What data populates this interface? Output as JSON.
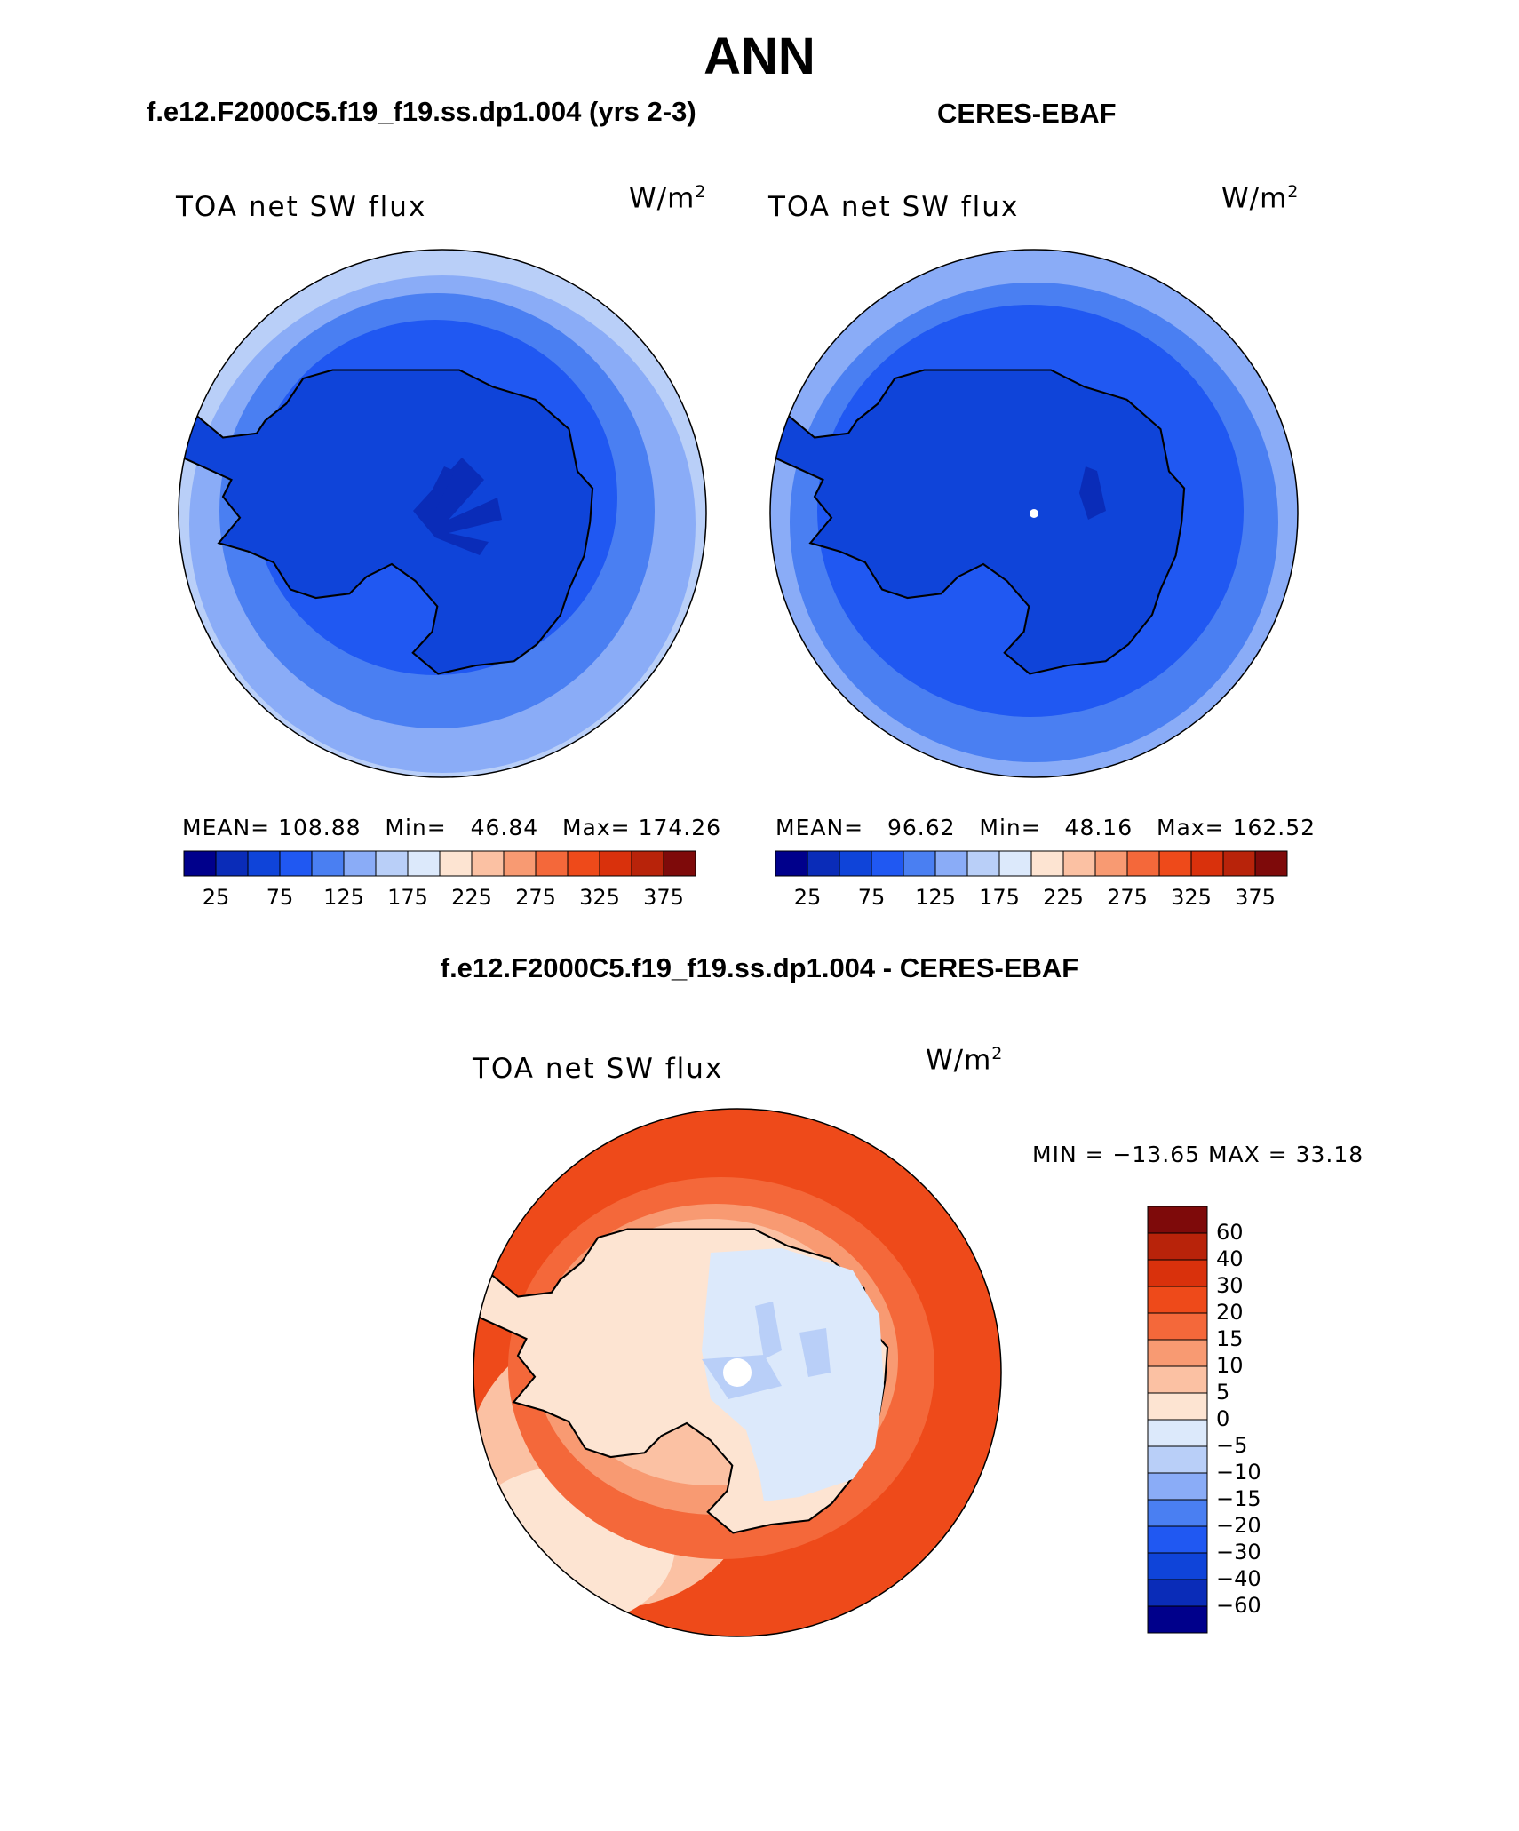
{
  "title": "ANN",
  "panels": [
    {
      "title": "f.e12.F2000C5.f19_f19.ss.dp1.004 (yrs 2-3)",
      "variable": "TOA net SW flux",
      "units": {
        "base": "W/m",
        "exp": "2"
      },
      "stats": {
        "mean_label": "MEAN=",
        "mean": "108.88",
        "min_label": "Min=",
        "min": "46.84",
        "max_label": "Max=",
        "max": "174.26"
      }
    },
    {
      "title": "CERES-EBAF",
      "variable": "TOA net SW flux",
      "units": {
        "base": "W/m",
        "exp": "2"
      },
      "stats": {
        "mean_label": "MEAN=",
        "mean": "96.62",
        "min_label": "Min=",
        "min": "48.16",
        "max_label": "Max=",
        "max": "162.52"
      }
    }
  ],
  "colorbar": {
    "ticks": [
      "25",
      "75",
      "125",
      "175",
      "225",
      "275",
      "325",
      "375"
    ],
    "colors": [
      "#00008b",
      "#0a2cb8",
      "#0f44d9",
      "#2058f2",
      "#4a7ff2",
      "#8aacf7",
      "#b9cff8",
      "#dce9fb",
      "#fde4d2",
      "#fbc1a3",
      "#f89a72",
      "#f4683a",
      "#ee4a1a",
      "#d9310c",
      "#b8230a",
      "#7e0a0a"
    ]
  },
  "difference": {
    "title": "f.e12.F2000C5.f19_f19.ss.dp1.004 - CERES-EBAF",
    "variable": "TOA net SW flux",
    "units": {
      "base": "W/m",
      "exp": "2"
    },
    "stats_text": "MIN = −13.65 MAX =   33.18",
    "colorbar": {
      "levels": [
        "60",
        "40",
        "30",
        "20",
        "15",
        "10",
        "5",
        "0",
        "−5",
        "−10",
        "−15",
        "−20",
        "−30",
        "−40",
        "−60"
      ],
      "colors": [
        "#7e0a0a",
        "#b8230a",
        "#d9310c",
        "#ee4a1a",
        "#f4683a",
        "#f89a72",
        "#fbc1a3",
        "#fde4d2",
        "#dce9fb",
        "#b9cff8",
        "#8aacf7",
        "#4a7ff2",
        "#2058f2",
        "#0f44d9",
        "#0a2cb8",
        "#00008b"
      ]
    }
  }
}
